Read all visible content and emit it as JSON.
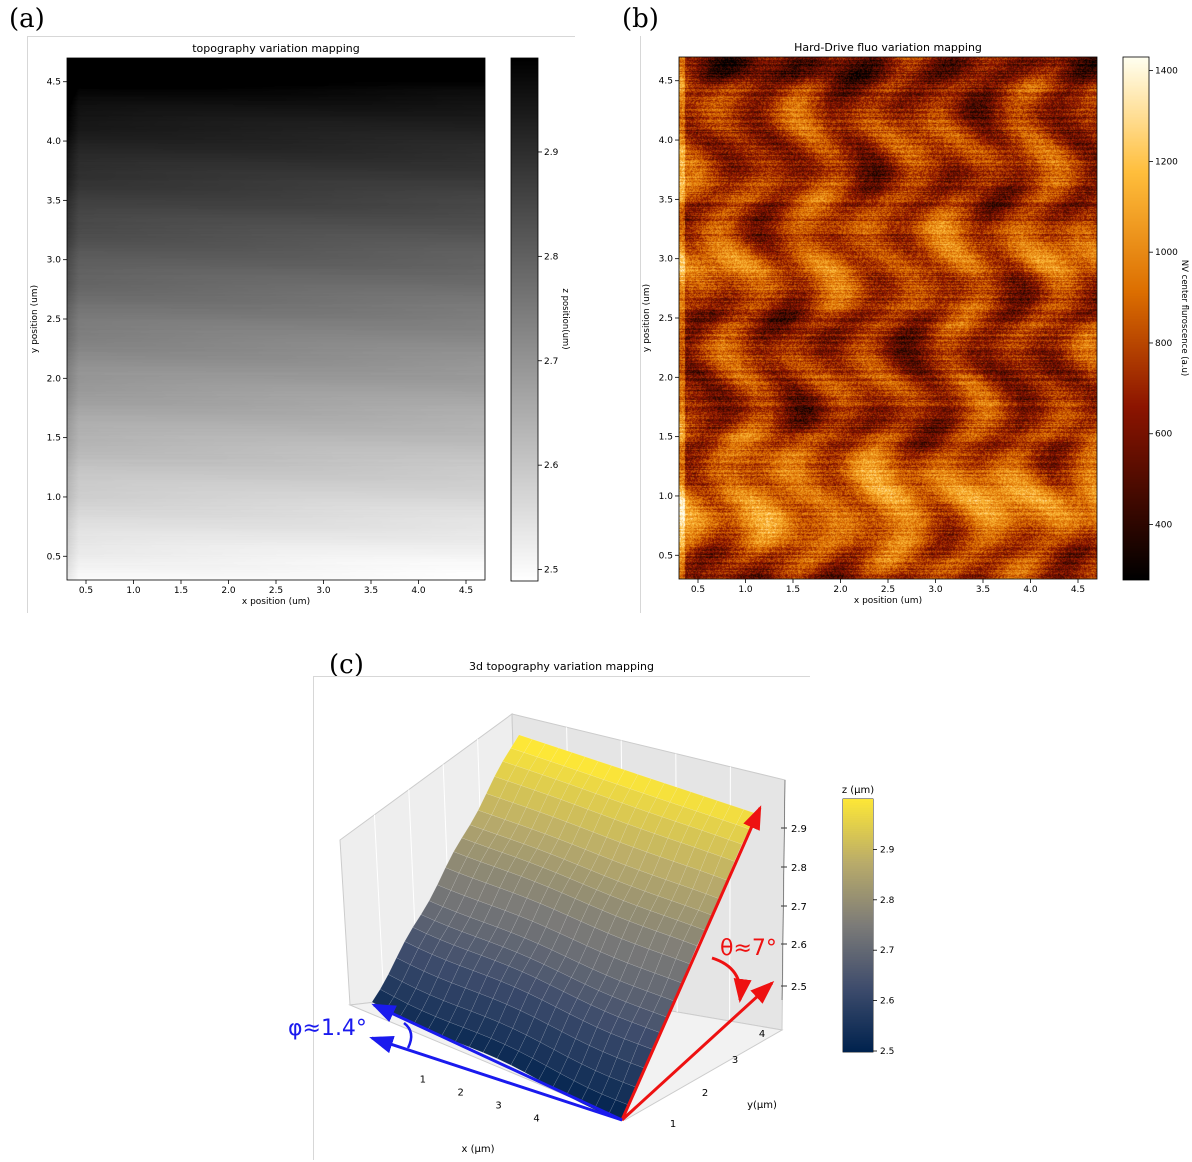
{
  "labels": {
    "a": "(a)",
    "b": "(b)",
    "c": "(c)"
  },
  "chart_data": [
    {
      "type": "heatmap",
      "title": "topography variation mapping",
      "xlabel": "x position (um)",
      "ylabel": "y position (um)",
      "xticks": [
        "0.5",
        "1.0",
        "1.5",
        "2.0",
        "2.5",
        "3.0",
        "3.5",
        "4.0",
        "4.5"
      ],
      "yticks": [
        "0.5",
        "1.0",
        "1.5",
        "2.0",
        "2.5",
        "3.0",
        "3.5",
        "4.0",
        "4.5"
      ],
      "xlim": [
        0.3,
        4.7
      ],
      "ylim": [
        0.3,
        4.7
      ],
      "colorbar": {
        "label": "z position(um)",
        "ticks": [
          "2.5",
          "2.6",
          "2.7",
          "2.8",
          "2.9"
        ],
        "range": [
          2.49,
          2.99
        ],
        "colormap": "gray_r"
      },
      "trend": "z increases toward high y (top), from about 2.5 um at y≈0.3 to about 2.99 um at y≈4.7"
    },
    {
      "type": "heatmap",
      "title": "Hard-Drive fluo variation mapping",
      "xlabel": "x position (um)",
      "ylabel": "y position (um)",
      "xticks": [
        "0.5",
        "1.0",
        "1.5",
        "2.0",
        "2.5",
        "3.0",
        "3.5",
        "4.0",
        "4.5"
      ],
      "yticks": [
        "0.5",
        "1.0",
        "1.5",
        "2.0",
        "2.5",
        "3.0",
        "3.5",
        "4.0",
        "4.5"
      ],
      "xlim": [
        0.3,
        4.7
      ],
      "ylim": [
        0.3,
        4.7
      ],
      "colorbar": {
        "label": "NV center fluroscence (a.u)",
        "ticks": [
          "400",
          "600",
          "800",
          "1000",
          "1200",
          "1400"
        ],
        "range": [
          280,
          1430
        ],
        "colormap": "afmhot"
      },
      "trend": "noisy horizontal stripes; brighter bands near y≈1.0 and y≈3.0, darker near y≈4.6"
    },
    {
      "type": "surface",
      "title": "3d topography variation mapping",
      "xlabel": "x (μm)",
      "ylabel": "y(μm)",
      "zlabel": "z (μm)",
      "xticks": [
        "1",
        "2",
        "3",
        "4"
      ],
      "yticks": [
        "1",
        "2",
        "3",
        "4"
      ],
      "zticks": [
        "2.5",
        "2.6",
        "2.7",
        "2.8",
        "2.9"
      ],
      "zlim": [
        2.5,
        2.99
      ],
      "colorbar": {
        "label": "z (μm)",
        "ticks": [
          "2.5",
          "2.6",
          "2.7",
          "2.8",
          "2.9"
        ],
        "range": [
          2.5,
          3.0
        ],
        "colormap": "cividis"
      },
      "annotations": [
        {
          "text": "θ≈7°",
          "color": "#ee1111"
        },
        {
          "text": "φ≈1.4°",
          "color": "#1a1aee"
        }
      ]
    }
  ]
}
